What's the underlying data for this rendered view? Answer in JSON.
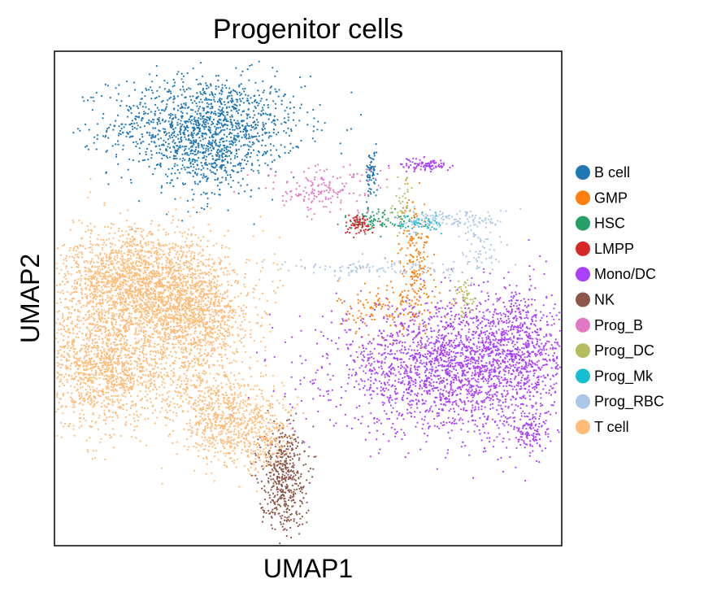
{
  "chart_data": {
    "type": "scatter",
    "title": "Progenitor cells",
    "xlabel": "UMAP1",
    "ylabel": "UMAP2",
    "ticks": "none",
    "grid": false,
    "legend_placement": "right",
    "series": [
      {
        "name": "B cell",
        "color": "#1f77b4",
        "clusters": [
          {
            "cx": 3.0,
            "cy": 8.5,
            "sx": 0.95,
            "sy": 0.5,
            "n": 1300
          },
          {
            "cx": 3.0,
            "cy": 7.8,
            "sx": 0.45,
            "sy": 0.45,
            "n": 250
          },
          {
            "cx": 6.25,
            "cy": 7.5,
            "sx": 0.06,
            "sy": 0.25,
            "n": 70
          }
        ]
      },
      {
        "name": "GMP",
        "color": "#ff7f0e",
        "clusters": [
          {
            "cx": 7.1,
            "cy": 5.9,
            "sx": 0.15,
            "sy": 0.6,
            "n": 170
          },
          {
            "cx": 6.6,
            "cy": 4.8,
            "sx": 0.5,
            "sy": 0.3,
            "n": 150
          }
        ]
      },
      {
        "name": "HSC",
        "color": "#279e68",
        "clusters": [
          {
            "cx": 6.4,
            "cy": 6.6,
            "sx": 0.35,
            "sy": 0.12,
            "n": 90
          }
        ]
      },
      {
        "name": "LMPP",
        "color": "#d62728",
        "clusters": [
          {
            "cx": 6.0,
            "cy": 6.5,
            "sx": 0.15,
            "sy": 0.1,
            "n": 70
          }
        ]
      },
      {
        "name": "Mono/DC",
        "color": "#aa40fc",
        "clusters": [
          {
            "cx": 8.0,
            "cy": 3.6,
            "sx": 1.25,
            "sy": 0.65,
            "n": 2400
          },
          {
            "cx": 9.1,
            "cy": 4.2,
            "sx": 0.35,
            "sy": 0.6,
            "n": 350
          },
          {
            "cx": 9.4,
            "cy": 2.3,
            "sx": 0.2,
            "sy": 0.25,
            "n": 130
          },
          {
            "cx": 7.3,
            "cy": 7.7,
            "sx": 0.25,
            "sy": 0.07,
            "n": 90
          }
        ]
      },
      {
        "name": "NK",
        "color": "#8c564b",
        "clusters": [
          {
            "cx": 4.5,
            "cy": 1.4,
            "sx": 0.22,
            "sy": 0.55,
            "n": 500
          }
        ]
      },
      {
        "name": "Prog_B",
        "color": "#e377c2",
        "clusters": [
          {
            "cx": 5.3,
            "cy": 7.2,
            "sx": 0.6,
            "sy": 0.25,
            "n": 160
          }
        ]
      },
      {
        "name": "Prog_DC",
        "color": "#b5bd61",
        "clusters": [
          {
            "cx": 8.1,
            "cy": 5.0,
            "sx": 0.1,
            "sy": 0.2,
            "n": 50
          },
          {
            "cx": 6.8,
            "cy": 6.9,
            "sx": 0.12,
            "sy": 0.3,
            "n": 30
          }
        ]
      },
      {
        "name": "Prog_Mk",
        "color": "#17becf",
        "clusters": [
          {
            "cx": 7.2,
            "cy": 6.5,
            "sx": 0.22,
            "sy": 0.1,
            "n": 60
          }
        ]
      },
      {
        "name": "Prog_RBC",
        "color": "#aec7e8",
        "clusters": [
          {
            "cx": 7.9,
            "cy": 6.6,
            "sx": 0.55,
            "sy": 0.1,
            "n": 130
          },
          {
            "cx": 8.4,
            "cy": 6.0,
            "sx": 0.25,
            "sy": 0.25,
            "n": 60
          },
          {
            "cx": 6.5,
            "cy": 5.6,
            "sx": 1.0,
            "sy": 0.08,
            "n": 120
          }
        ]
      },
      {
        "name": "T cell",
        "color": "#ffbb78",
        "clusters": [
          {
            "cx": 1.7,
            "cy": 5.3,
            "sx": 0.85,
            "sy": 0.55,
            "n": 2200
          },
          {
            "cx": 1.0,
            "cy": 3.6,
            "sx": 0.6,
            "sy": 0.6,
            "n": 1300
          },
          {
            "cx": 2.8,
            "cy": 4.6,
            "sx": 0.55,
            "sy": 0.5,
            "n": 900
          },
          {
            "cx": 3.4,
            "cy": 2.5,
            "sx": 0.5,
            "sy": 0.45,
            "n": 700
          },
          {
            "cx": 4.2,
            "cy": 2.3,
            "sx": 0.2,
            "sy": 0.35,
            "n": 150
          },
          {
            "cx": 2.5,
            "cy": 3.4,
            "sx": 0.6,
            "sy": 0.4,
            "n": 250
          }
        ]
      }
    ],
    "xlim": [
      0,
      10
    ],
    "ylim": [
      0,
      10
    ]
  }
}
